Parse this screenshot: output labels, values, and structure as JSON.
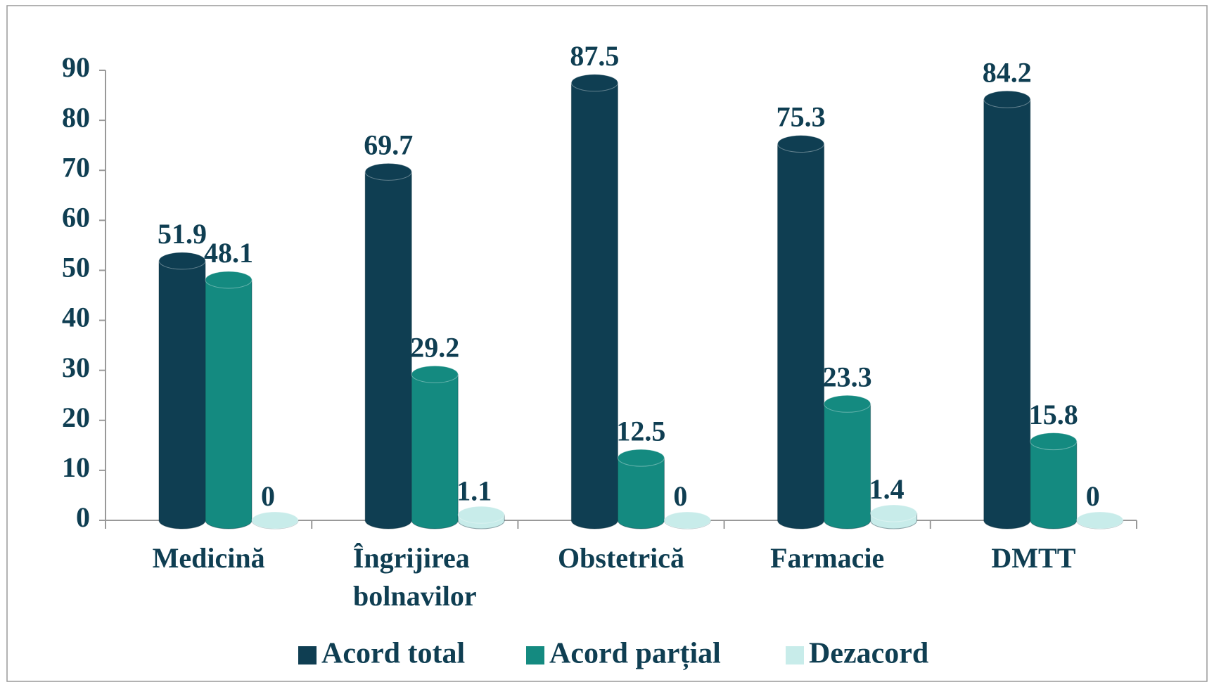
{
  "chart_data": {
    "type": "bar",
    "categories": [
      "Medicină",
      "Îngrijirea bolnavilor",
      "Obstetrică",
      "Farmacie",
      "DMTT"
    ],
    "series": [
      {
        "name": "Acord total",
        "color": "#0f3e52",
        "values": [
          51.9,
          69.7,
          87.5,
          75.3,
          84.2
        ]
      },
      {
        "name": "Acord parțial",
        "color": "#148a80",
        "values": [
          48.1,
          29.2,
          12.5,
          23.3,
          15.8
        ]
      },
      {
        "name": "Dezacord",
        "color": "#c8ecea",
        "values": [
          0,
          1.1,
          0,
          1.4,
          0
        ]
      }
    ],
    "ylim": [
      0,
      90
    ],
    "yticks": [
      0,
      10,
      20,
      30,
      40,
      50,
      60,
      70,
      80,
      90
    ],
    "legend": "bottom"
  }
}
